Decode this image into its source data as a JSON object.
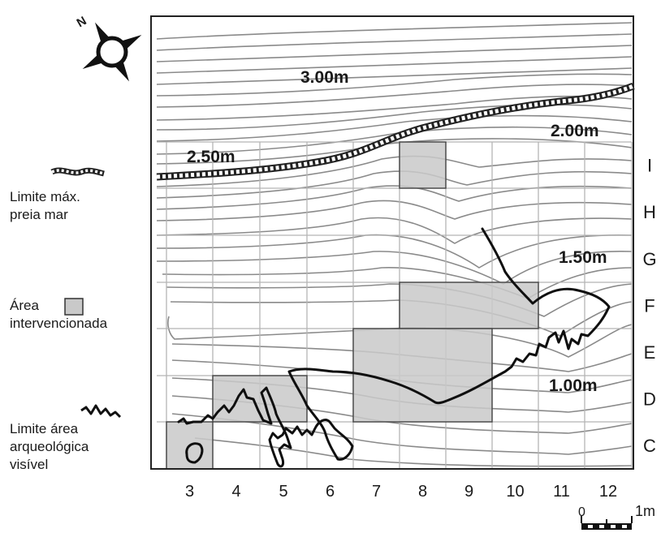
{
  "map": {
    "contour_labels": [
      "3.00m",
      "2.50m",
      "2.00m",
      "1.50m",
      "1.00m"
    ],
    "columns": [
      "3",
      "4",
      "5",
      "6",
      "7",
      "8",
      "9",
      "10",
      "11",
      "12"
    ],
    "rows": [
      "I",
      "H",
      "G",
      "F",
      "E",
      "D",
      "C"
    ],
    "north_label": "N",
    "scale": {
      "start": "0",
      "end": "1m"
    }
  },
  "legend": {
    "high_tide": {
      "lines": [
        "Limite máx.",
        "preia mar"
      ]
    },
    "intervened": {
      "lines": [
        "Área",
        "intervencionada"
      ]
    },
    "archaeological": {
      "lines": [
        "Limite área",
        "arqueológica",
        "visível"
      ]
    }
  },
  "colors": {
    "contour": "#8a8a8a",
    "grid": "#b5b5b5",
    "fill": "#c9c9c9",
    "ink": "#111111"
  }
}
